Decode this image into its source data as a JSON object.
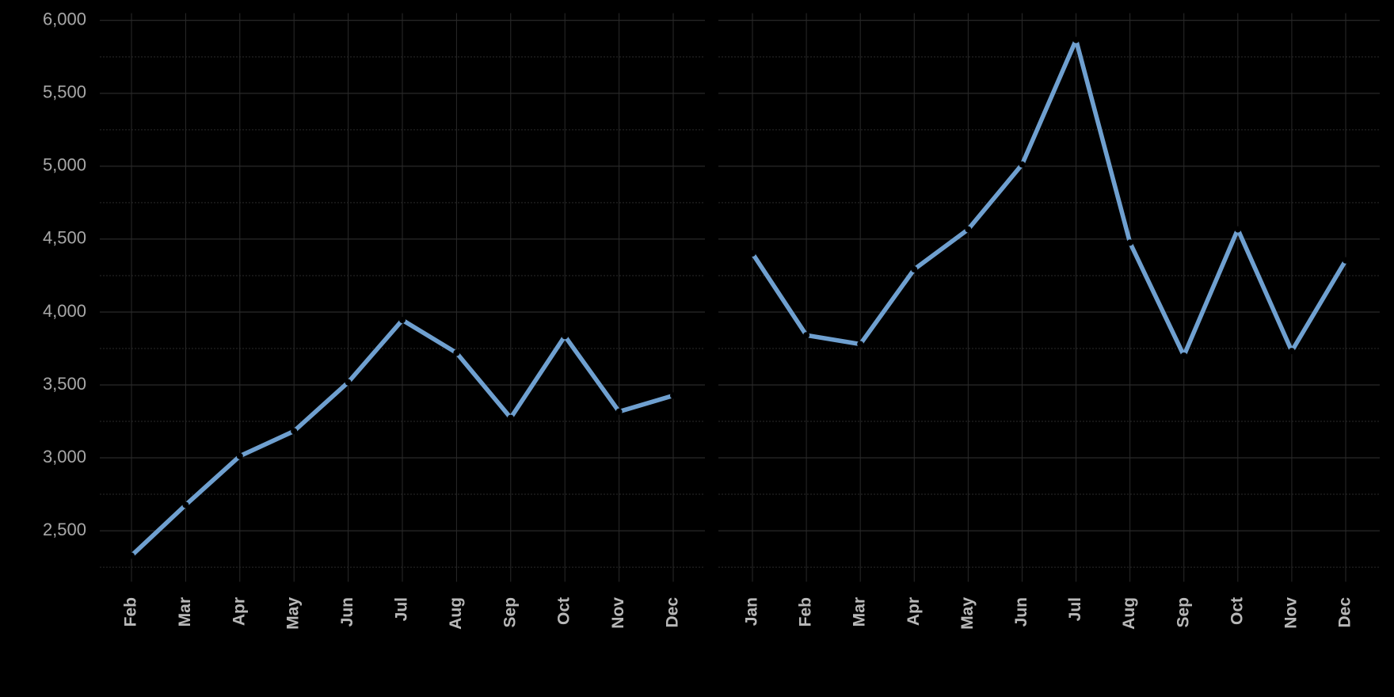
{
  "chart_data": [
    {
      "type": "line",
      "categories": [
        "Feb",
        "Mar",
        "Apr",
        "May",
        "Jun",
        "Jul",
        "Aug",
        "Sep",
        "Oct",
        "Nov",
        "Dec"
      ],
      "values": [
        2329,
        2677,
        3012,
        3183,
        3518,
        3945,
        3720,
        3274,
        3835,
        3317,
        3427
      ],
      "color": "#6fa0d0",
      "ylim": [
        2150,
        6050
      ],
      "yticks": [
        {
          "value": 2500,
          "label": "2,500"
        },
        {
          "value": 3000,
          "label": "3,000"
        },
        {
          "value": 3500,
          "label": "3,500"
        },
        {
          "value": 4000,
          "label": "4,000"
        },
        {
          "value": 4500,
          "label": "4,500"
        },
        {
          "value": 5000,
          "label": "5,000"
        },
        {
          "value": 5500,
          "label": "5,500"
        },
        {
          "value": 6000,
          "label": "6,000"
        }
      ],
      "grid": true
    },
    {
      "type": "line",
      "categories": [
        "Jan",
        "Feb",
        "Mar",
        "Apr",
        "May",
        "Jun",
        "Jul",
        "Aug",
        "Sep",
        "Oct",
        "Nov",
        "Dec"
      ],
      "values": [
        4402,
        3841,
        3780,
        4293,
        4567,
        5012,
        5866,
        4476,
        3701,
        4567,
        3732,
        4354
      ],
      "color": "#6fa0d0",
      "ylim": [
        2150,
        6050
      ],
      "grid": true
    }
  ]
}
